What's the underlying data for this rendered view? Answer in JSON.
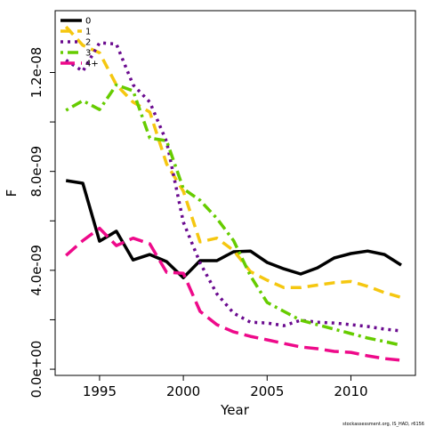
{
  "chart_data": {
    "type": "line",
    "y_label": "F",
    "x_label": "Year",
    "footnote": "stockassessment.org, IS_HAD, r6156",
    "x": [
      1993,
      1994,
      1995,
      1996,
      1997,
      1998,
      1999,
      2000,
      2001,
      2002,
      2003,
      2004,
      2005,
      2006,
      2007,
      2008,
      2009,
      2010,
      2011,
      2012,
      2013
    ],
    "series": [
      {
        "name": "0",
        "color": "#000000",
        "dash": "none",
        "values": [
          7.63e-09,
          7.52e-09,
          5.18e-09,
          5.58e-09,
          4.42e-09,
          4.64e-09,
          4.35e-09,
          3.7e-09,
          4.39e-09,
          4.39e-09,
          4.75e-09,
          4.78e-09,
          4.32e-09,
          4.06e-09,
          3.85e-09,
          4.1e-09,
          4.5e-09,
          4.68e-09,
          4.78e-09,
          4.64e-09,
          4.21e-09
        ]
      },
      {
        "name": "1",
        "color": "#f5c710",
        "dash": "12,7",
        "values": [
          1.385e-08,
          1.31e-08,
          1.28e-08,
          1.15e-08,
          1.08e-08,
          1.04e-08,
          8.3e-09,
          7.2e-09,
          5.15e-09,
          5.3e-09,
          4.8e-09,
          3.95e-09,
          3.6e-09,
          3.3e-09,
          3.3e-09,
          3.4e-09,
          3.5e-09,
          3.55e-09,
          3.35e-09,
          3.1e-09,
          2.9e-09
        ]
      },
      {
        "name": "2",
        "color": "#6a0a8f",
        "dash": "3,5",
        "values": [
          1.25e-08,
          1.205e-08,
          1.32e-08,
          1.315e-08,
          1.15e-08,
          1.08e-08,
          9.2e-09,
          5.95e-09,
          4.3e-09,
          3.05e-09,
          2.27e-09,
          1.9e-09,
          1.87e-09,
          1.76e-09,
          1.98e-09,
          1.9e-09,
          1.87e-09,
          1.8e-09,
          1.73e-09,
          1.62e-09,
          1.55e-09
        ]
      },
      {
        "name": "3",
        "color": "#66cc00",
        "dash": "3,5,12,5",
        "values": [
          1.047e-08,
          1.086e-08,
          1.05e-08,
          1.15e-08,
          1.126e-08,
          9.35e-09,
          9.24e-09,
          7.3e-09,
          6.83e-09,
          6.1e-09,
          5.2e-09,
          3.78e-09,
          2.7e-09,
          2.34e-09,
          1.98e-09,
          1.8e-09,
          1.62e-09,
          1.44e-09,
          1.26e-09,
          1.12e-09,
          9.7e-10
        ]
      },
      {
        "name": "4+",
        "color": "#ee0a8a",
        "dash": "16,7",
        "values": [
          4.6e-09,
          5.2e-09,
          5.7e-09,
          5e-09,
          5.3e-09,
          5.07e-09,
          3.92e-09,
          3.88e-09,
          2.34e-09,
          1.8e-09,
          1.51e-09,
          1.33e-09,
          1.19e-09,
          1.04e-09,
          9e-10,
          8.3e-10,
          7.2e-10,
          6.8e-10,
          5.4e-10,
          4.3e-10,
          3.6e-10
        ]
      }
    ],
    "xlim": [
      1992.35,
      2013.85
    ],
    "xticks": [
      1995,
      2000,
      2005,
      2010
    ],
    "ylim": [
      -2.5e-10,
      1.45e-08
    ],
    "yticks": [
      {
        "value": 0,
        "label": "0.0e+00"
      },
      {
        "value": 4e-09,
        "label": "4.0e-09"
      },
      {
        "value": 8e-09,
        "label": "8.0e-09"
      },
      {
        "value": 1.2e-08,
        "label": "1.2e-08"
      }
    ],
    "yminor_ticks": [
      2e-09,
      6e-09,
      1e-08
    ],
    "legend": "top-left"
  }
}
